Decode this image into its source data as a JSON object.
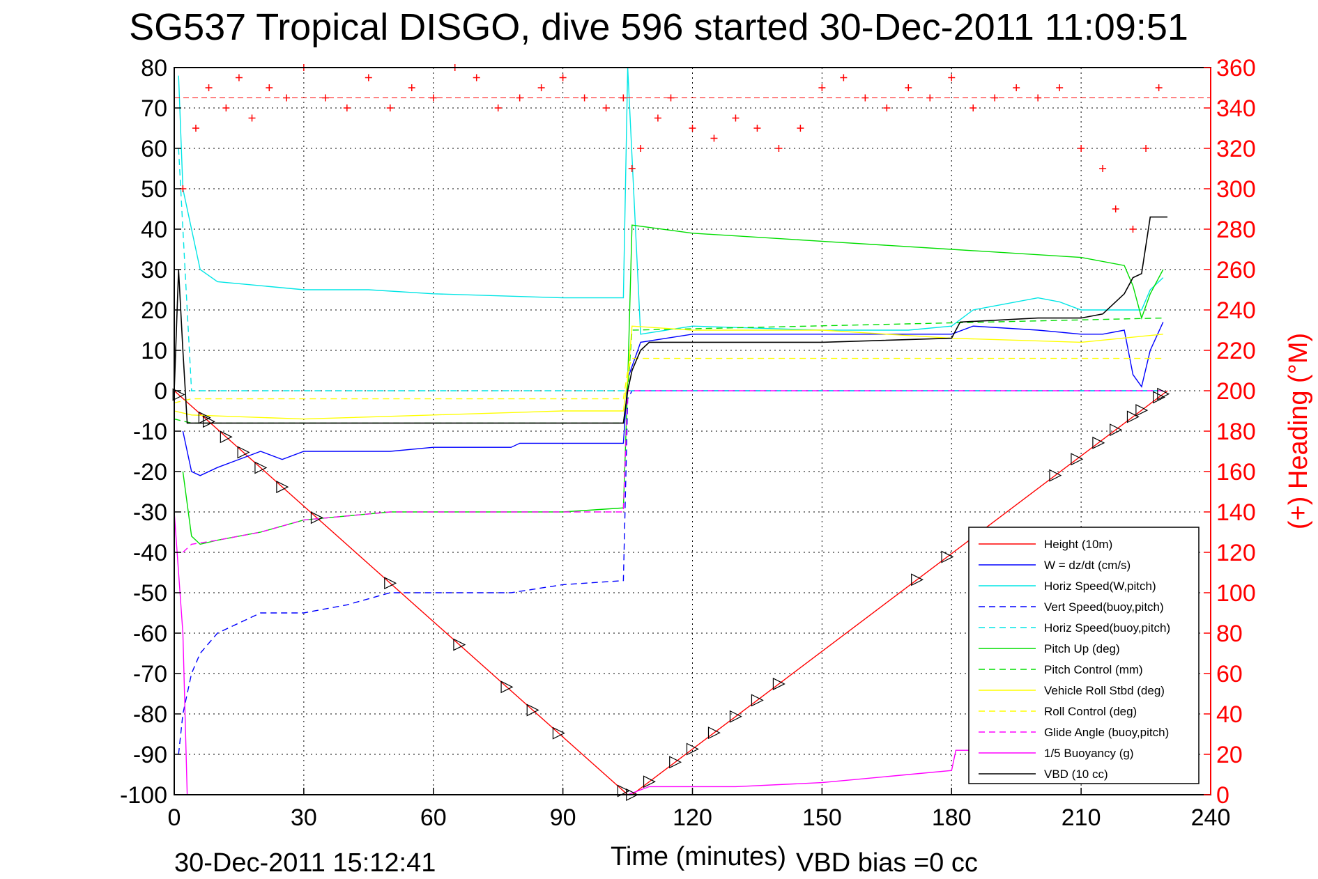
{
  "chart_data": {
    "type": "line",
    "title": "SG537 Tropical DISGO, dive 596 started 30-Dec-2011 11:09:51",
    "xlabel": "Time (minutes)",
    "ylabel": "",
    "y2label": "(+) Heading (°M)",
    "xlim": [
      0,
      240
    ],
    "ylim": [
      -100,
      80
    ],
    "y2lim": [
      0,
      360
    ],
    "x_ticks": [
      "0",
      "30",
      "60",
      "90",
      "120",
      "150",
      "180",
      "210",
      "240"
    ],
    "y_ticks": [
      "80",
      "70",
      "60",
      "50",
      "40",
      "30",
      "20",
      "10",
      "0",
      "-10",
      "-20",
      "-30",
      "-40",
      "-50",
      "-60",
      "-70",
      "-80",
      "-90",
      "-100"
    ],
    "y2_ticks": [
      "360",
      "340",
      "320",
      "300",
      "280",
      "260",
      "240",
      "220",
      "200",
      "180",
      "160",
      "140",
      "120",
      "100",
      "80",
      "60",
      "40",
      "20",
      "0"
    ],
    "grid": true,
    "legend_position": "bottom-right",
    "footer_left": "30-Dec-2011 15:12:41",
    "footer_right": "VBD bias =0 cc",
    "series": [
      {
        "name": "Height (10m)",
        "color": "#ff0000",
        "style": "solid",
        "x": [
          0,
          105,
          106,
          230
        ],
        "y": [
          0,
          -100,
          -100,
          0
        ]
      },
      {
        "name": "W = dz/dt (cm/s)",
        "color": "#0000ff",
        "style": "solid",
        "x": [
          2,
          4,
          6,
          10,
          15,
          20,
          25,
          30,
          45,
          50,
          60,
          78,
          80,
          90,
          104,
          105,
          108,
          120,
          150,
          170,
          180,
          185,
          200,
          210,
          215,
          220,
          222,
          224,
          226,
          229
        ],
        "y": [
          -10,
          -20,
          -21,
          -19,
          -17,
          -15,
          -17,
          -15,
          -15,
          -15,
          -14,
          -14,
          -13,
          -13,
          -13,
          3,
          12,
          14,
          14,
          14,
          14,
          16,
          15,
          14,
          14,
          15,
          4,
          1,
          10,
          17
        ]
      },
      {
        "name": "Horiz Speed(W,pitch)",
        "color": "#00e5e5",
        "style": "solid",
        "x": [
          1,
          2,
          4,
          6,
          10,
          20,
          30,
          45,
          60,
          90,
          104,
          105,
          108,
          120,
          150,
          170,
          180,
          185,
          200,
          205,
          210,
          220,
          224,
          226,
          229
        ],
        "y": [
          78,
          50,
          40,
          30,
          27,
          26,
          25,
          25,
          24,
          23,
          23,
          80,
          14,
          16,
          15,
          15,
          16,
          20,
          23,
          22,
          20,
          20,
          20,
          25,
          28
        ]
      },
      {
        "name": "Vert Speed(buoy,pitch)",
        "color": "#0000ff",
        "style": "dashed",
        "x": [
          1,
          2,
          4,
          6,
          10,
          20,
          30,
          40,
          50,
          60,
          78,
          90,
          104,
          105,
          106,
          229
        ],
        "y": [
          -90,
          -80,
          -70,
          -65,
          -60,
          -55,
          -55,
          -53,
          -50,
          -50,
          -50,
          -48,
          -47,
          -2,
          0,
          0
        ]
      },
      {
        "name": "Horiz Speed(buoy,pitch)",
        "color": "#00e5e5",
        "style": "dashed",
        "x": [
          1,
          2,
          4,
          104,
          105,
          106,
          229
        ],
        "y": [
          60,
          40,
          0,
          0,
          0,
          0,
          0
        ]
      },
      {
        "name": "Pitch Up (deg)",
        "color": "#00dd00",
        "style": "solid",
        "x": [
          2,
          4,
          6,
          10,
          20,
          30,
          50,
          60,
          78,
          90,
          104,
          105,
          106,
          120,
          150,
          180,
          210,
          220,
          222,
          224,
          226,
          229
        ],
        "y": [
          -20,
          -36,
          -38,
          -37,
          -35,
          -32,
          -30,
          -30,
          -30,
          -30,
          -29,
          2,
          41,
          39,
          37,
          35,
          33,
          31,
          26,
          18,
          24,
          30
        ]
      },
      {
        "name": "Pitch Control (mm)",
        "color": "#00dd00",
        "style": "dashed",
        "x": [
          0,
          4,
          104,
          105,
          106,
          229
        ],
        "y": [
          -7,
          -8,
          -8,
          0,
          15,
          18
        ]
      },
      {
        "name": "Vehicle Roll Stbd (deg)",
        "color": "#ffff00",
        "style": "solid",
        "x": [
          0,
          4,
          30,
          60,
          90,
          104,
          105,
          106,
          120,
          150,
          180,
          210,
          229
        ],
        "y": [
          -5,
          -6,
          -7,
          -6,
          -5,
          -5,
          3,
          16,
          15,
          15,
          13,
          12,
          14
        ]
      },
      {
        "name": "Roll Control (deg)",
        "color": "#ffff00",
        "style": "dashed",
        "x": [
          0,
          4,
          104,
          105,
          106,
          229
        ],
        "y": [
          -3,
          -2,
          -2,
          5,
          8,
          8
        ]
      },
      {
        "name": "Glide Angle (buoy,pitch)",
        "color": "#ff00ff",
        "style": "dashed",
        "x": [
          2,
          4,
          10,
          20,
          30,
          50,
          78,
          90,
          104,
          105,
          106,
          229
        ],
        "y": [
          -40,
          -38,
          -37,
          -35,
          -32,
          -30,
          -30,
          -30,
          -30,
          0,
          0,
          0
        ]
      },
      {
        "name": "1/5 Buoyancy (g)",
        "color": "#ff00ff",
        "style": "solid",
        "x": [
          0,
          2,
          3,
          4,
          105,
          110,
          130,
          150,
          170,
          180,
          181,
          182,
          185,
          190,
          230
        ],
        "y": [
          -30,
          -60,
          -100,
          -100,
          -100,
          -98,
          -98,
          -97,
          -95,
          -94,
          -89,
          -89,
          -89,
          -89,
          -89
        ]
      },
      {
        "name": "VBD (10 cc)",
        "color": "#000000",
        "style": "solid",
        "x": [
          0,
          1,
          2,
          3,
          104,
          105,
          106,
          108,
          110,
          120,
          150,
          180,
          182,
          200,
          210,
          215,
          220,
          222,
          224,
          226,
          227,
          230
        ],
        "y": [
          0,
          30,
          10,
          -8,
          -8,
          0,
          5,
          10,
          12,
          12,
          12,
          13,
          17,
          18,
          18,
          19,
          24,
          28,
          29,
          43,
          43,
          43
        ]
      },
      {
        "name": "(+) Heading",
        "color": "#ff0000",
        "style": "markers",
        "axis": "right",
        "x": [
          2,
          5,
          8,
          12,
          15,
          18,
          22,
          26,
          30,
          35,
          40,
          45,
          50,
          55,
          60,
          65,
          70,
          75,
          80,
          85,
          90,
          95,
          100,
          104,
          106,
          108,
          112,
          115,
          120,
          125,
          130,
          135,
          140,
          145,
          150,
          155,
          160,
          165,
          170,
          175,
          180,
          185,
          190,
          195,
          200,
          205,
          210,
          215,
          218,
          222,
          225,
          228
        ],
        "y": [
          300,
          330,
          350,
          340,
          355,
          335,
          350,
          345,
          360,
          345,
          340,
          355,
          340,
          350,
          345,
          360,
          355,
          340,
          345,
          350,
          355,
          345,
          340,
          345,
          310,
          320,
          335,
          345,
          330,
          325,
          335,
          330,
          320,
          330,
          350,
          355,
          345,
          340,
          350,
          345,
          355,
          340,
          345,
          350,
          345,
          350,
          320,
          310,
          290,
          280,
          320,
          350
        ]
      }
    ]
  }
}
